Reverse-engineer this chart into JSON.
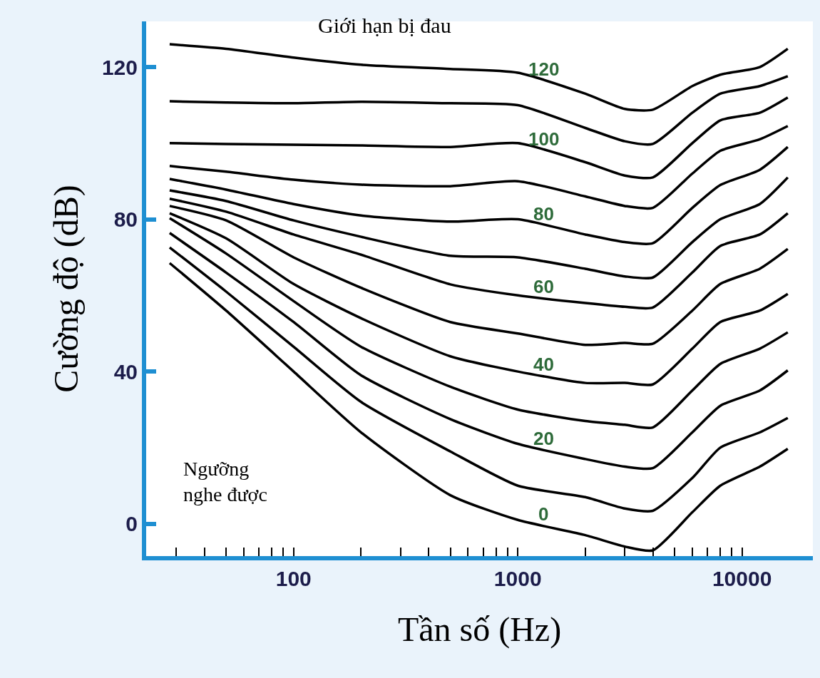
{
  "chart_data": {
    "type": "line",
    "xlabel": "Tần số (Hz)",
    "ylabel": "Cường độ (dB)",
    "log": "x",
    "x": [
      28,
      50,
      100,
      200,
      500,
      1000,
      2000,
      3000,
      4000,
      6000,
      8000,
      12000,
      16000
    ],
    "series": [
      {
        "name": "0",
        "color": "#000000",
        "values": [
          68.5,
          56,
          40,
          24,
          7.5,
          1,
          -3,
          -6,
          -7,
          3,
          10,
          15,
          19.7
        ]
      },
      {
        "color": "#000000",
        "values": [
          72.6,
          61,
          46.5,
          32,
          19,
          10,
          7,
          4,
          3.4,
          12,
          20,
          24,
          27.8
        ]
      },
      {
        "name": "20",
        "color": "#000000",
        "values": [
          76.4,
          66,
          53,
          39,
          27.5,
          21,
          17,
          15,
          14.6,
          24,
          31,
          35,
          40.3
        ]
      },
      {
        "color": "#000000",
        "values": [
          80.3,
          71,
          58.5,
          46.5,
          36,
          30,
          27,
          26,
          25.3,
          35,
          42,
          46,
          50.3
        ]
      },
      {
        "name": "40",
        "color": "#000000",
        "values": [
          81.6,
          75,
          63,
          54,
          44,
          40,
          37,
          37,
          36.6,
          46,
          53,
          56,
          60.4
        ]
      },
      {
        "color": "#000000",
        "values": [
          83.5,
          79.7,
          70,
          62,
          53,
          50,
          47,
          47.5,
          47.3,
          56,
          63,
          67,
          72.2
        ]
      },
      {
        "name": "60",
        "color": "#000000",
        "values": [
          85.4,
          82,
          76,
          70.7,
          62.9,
          60,
          58,
          57,
          56.8,
          66,
          73,
          76,
          81.6
        ]
      },
      {
        "color": "#000000",
        "values": [
          87.6,
          84.8,
          79.7,
          75.4,
          70.4,
          70,
          67,
          65,
          64.7,
          74,
          80,
          84,
          91
        ]
      },
      {
        "name": "80",
        "color": "#000000",
        "values": [
          90.6,
          87.8,
          84,
          81,
          79.4,
          80,
          76,
          74,
          73.7,
          83,
          89,
          93,
          99
        ]
      },
      {
        "color": "#000000",
        "values": [
          94,
          92.5,
          90.4,
          89.1,
          88.7,
          90,
          86,
          83.5,
          83,
          92,
          98,
          101,
          104.5
        ]
      },
      {
        "name": "100",
        "color": "#000000",
        "values": [
          100,
          99.8,
          99.6,
          99.4,
          99,
          100,
          95,
          91.5,
          91,
          100,
          106,
          108,
          112
        ]
      },
      {
        "color": "#000000",
        "values": [
          111,
          110.7,
          110.5,
          110.9,
          110.5,
          110,
          104,
          100.5,
          99.8,
          108,
          113,
          115,
          117.6
        ]
      },
      {
        "name": "120",
        "color": "#000000",
        "values": [
          126,
          124.8,
          122.5,
          120.6,
          119.5,
          118.5,
          113,
          109,
          108.8,
          115,
          118,
          120,
          124.8
        ]
      }
    ],
    "xlim": [
      22,
      20700
    ],
    "ylim": [
      -8.5,
      132
    ],
    "xticks": [
      {
        "value": 30,
        "label": null
      },
      {
        "value": 40,
        "label": null
      },
      {
        "value": 50,
        "label": null
      },
      {
        "value": 60,
        "label": null
      },
      {
        "value": 70,
        "label": null
      },
      {
        "value": 80,
        "label": null
      },
      {
        "value": 90,
        "label": null
      },
      100,
      {
        "value": 200,
        "label": null
      },
      {
        "value": 300,
        "label": null
      },
      {
        "value": 400,
        "label": null
      },
      {
        "value": 500,
        "label": null
      },
      {
        "value": 600,
        "label": null
      },
      {
        "value": 700,
        "label": null
      },
      {
        "value": 800,
        "label": null
      },
      {
        "value": 900,
        "label": null
      },
      1000,
      {
        "value": 2000,
        "label": null
      },
      {
        "value": 3000,
        "label": null
      },
      {
        "value": 4000,
        "label": null
      },
      {
        "value": 5000,
        "label": null
      },
      {
        "value": 6000,
        "label": null
      },
      {
        "value": 7000,
        "label": null
      },
      {
        "value": 8000,
        "label": null
      },
      {
        "value": 9000,
        "label": null
      },
      10000
    ],
    "yticks": [
      0,
      40,
      80,
      120
    ],
    "annotations": [
      "Giới hạn bị đau",
      "Ngưỡng\nnghe được"
    ],
    "legend": false,
    "marker": "none",
    "line_style": "solid"
  }
}
